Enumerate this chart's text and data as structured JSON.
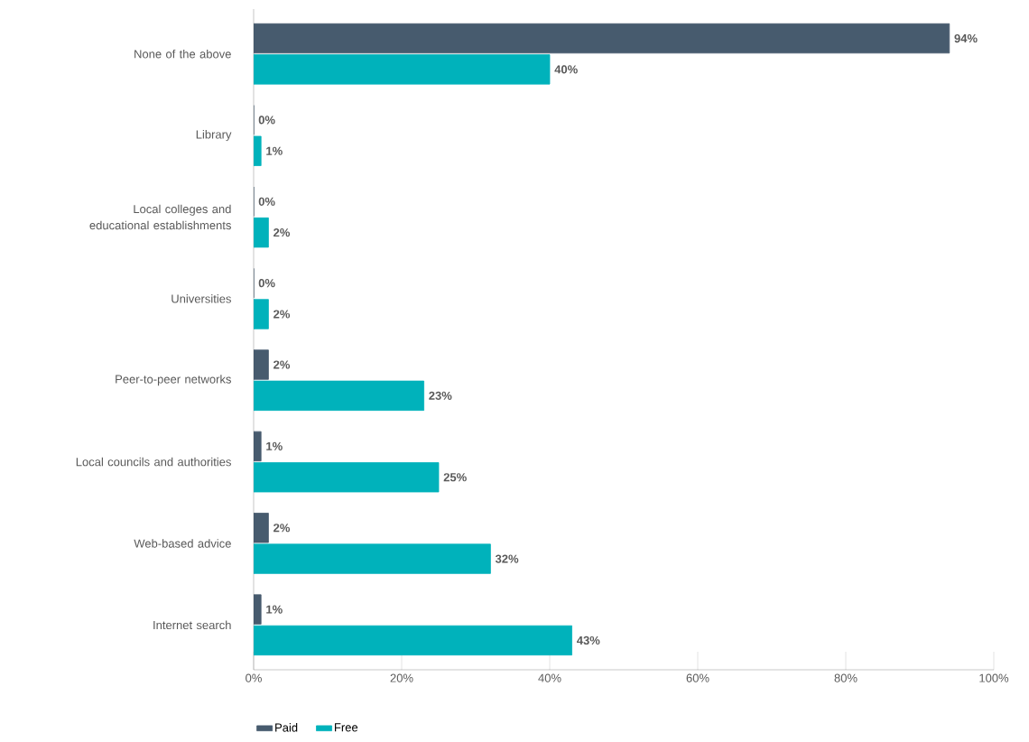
{
  "chart_data": {
    "type": "bar",
    "orientation": "horizontal",
    "categories": [
      "None of the above",
      "Library",
      "Local colleges and educational establishments",
      "Universities",
      "Peer-to-peer networks",
      "Local councils and authorities",
      "Web-based advice",
      "Internet search"
    ],
    "series": [
      {
        "name": "Paid",
        "color": "#475b6e",
        "values": [
          94,
          0,
          0,
          0,
          2,
          1,
          2,
          1
        ],
        "value_labels": [
          "94%",
          "0%",
          "0%",
          "0%",
          "2%",
          "1%",
          "2%",
          "1%"
        ]
      },
      {
        "name": "Free",
        "color": "#00b2bb",
        "values": [
          40,
          1,
          2,
          2,
          23,
          25,
          32,
          43
        ],
        "value_labels": [
          "40%",
          "1%",
          "2%",
          "2%",
          "23%",
          "25%",
          "32%",
          "43%"
        ]
      }
    ],
    "xlim": [
      0,
      100
    ],
    "xticks": [
      {
        "value": 0,
        "label": "0%"
      },
      {
        "value": 20,
        "label": "20%"
      },
      {
        "value": 40,
        "label": "40%"
      },
      {
        "value": 60,
        "label": "60%"
      },
      {
        "value": 80,
        "label": "80%"
      },
      {
        "value": 100,
        "label": "100%"
      }
    ],
    "grid": false,
    "legend": "bottom left"
  }
}
